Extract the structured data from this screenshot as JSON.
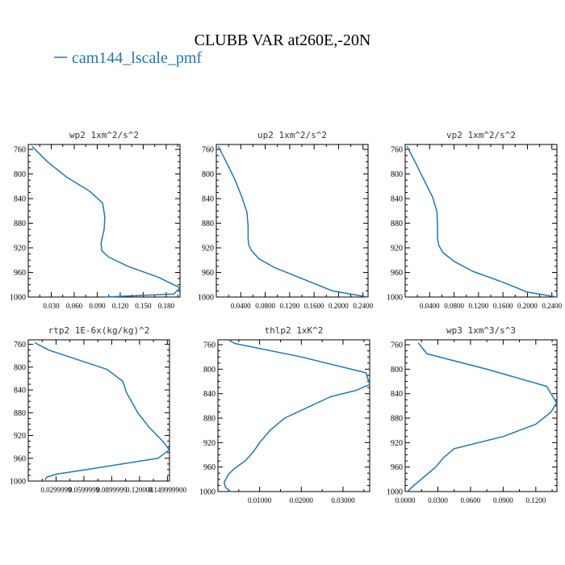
{
  "figure": {
    "title": "CLUBB VAR at260E,-20N",
    "legend_label": "cam144_lscale_pmf",
    "line_color": "#1f77b4"
  },
  "chart_data": [
    {
      "type": "line",
      "title": "wp2  1xm^2/s^2",
      "xlim": [
        0.0,
        0.198
      ],
      "ylim": [
        1000,
        752
      ],
      "x_ticks": [
        0.03,
        0.06,
        0.09,
        0.12,
        0.15,
        0.18
      ],
      "x_tick_labels": [
        "0.030",
        "0.060",
        "0.090",
        "0.120",
        "0.150",
        "0.180"
      ],
      "y_ticks": [
        760,
        800,
        840,
        880,
        920,
        960,
        1000
      ],
      "series": [
        {
          "x": [
            0.005,
            0.025,
            0.05,
            0.08,
            0.097,
            0.1,
            0.099,
            0.095,
            0.096,
            0.105,
            0.13,
            0.17,
            0.198,
            0.19,
            0.1
          ],
          "y": [
            755,
            780,
            805,
            828,
            847,
            870,
            890,
            912,
            925,
            935,
            950,
            968,
            985,
            995,
            1000
          ]
        }
      ]
    },
    {
      "type": "line",
      "title": "up2  1xm^2/s^2",
      "xlim": [
        0.0,
        0.2483
      ],
      "ylim": [
        1000,
        752
      ],
      "x_ticks": [
        0.04,
        0.08,
        0.12,
        0.16,
        0.2,
        0.24
      ],
      "x_tick_labels": [
        "0.0400",
        "0.0800",
        "0.1200",
        "0.1600",
        "0.2000",
        "0.2400"
      ],
      "y_ticks": [
        760,
        800,
        840,
        880,
        920,
        960,
        1000
      ],
      "series": [
        {
          "x": [
            0.003,
            0.015,
            0.03,
            0.042,
            0.05,
            0.052,
            0.052,
            0.053,
            0.058,
            0.07,
            0.095,
            0.14,
            0.19,
            0.248
          ],
          "y": [
            755,
            778,
            808,
            838,
            862,
            885,
            905,
            915,
            925,
            938,
            952,
            970,
            990,
            1000
          ]
        }
      ]
    },
    {
      "type": "line",
      "title": "vp2  1xm^2/s^2",
      "xlim": [
        0.0,
        0.2483
      ],
      "ylim": [
        1000,
        752
      ],
      "x_ticks": [
        0.04,
        0.08,
        0.12,
        0.16,
        0.2,
        0.24
      ],
      "x_tick_labels": [
        "0.0400",
        "0.0800",
        "0.1200",
        "0.1600",
        "0.2000",
        "0.2400"
      ],
      "y_ticks": [
        760,
        800,
        840,
        880,
        920,
        960,
        1000
      ],
      "series": [
        {
          "x": [
            0.003,
            0.015,
            0.03,
            0.045,
            0.052,
            0.053,
            0.053,
            0.055,
            0.062,
            0.08,
            0.11,
            0.16,
            0.2,
            0.248
          ],
          "y": [
            755,
            778,
            808,
            838,
            862,
            885,
            905,
            916,
            928,
            942,
            958,
            976,
            992,
            1000
          ]
        }
      ]
    },
    {
      "type": "line",
      "title": "rtp2  1E-6x(kg/kg)^2",
      "xlim": [
        0.0,
        0.1523
      ],
      "ylim": [
        1000,
        752
      ],
      "x_ticks": [
        0.03,
        0.06,
        0.09,
        0.12,
        0.15
      ],
      "x_tick_labels": [
        "0.0299999",
        "0.0599999",
        "0.0899999",
        "0.120000",
        "0.149999900"
      ],
      "y_ticks": [
        760,
        800,
        840,
        880,
        920,
        960,
        1000
      ],
      "series": [
        {
          "x": [
            0.007,
            0.022,
            0.05,
            0.085,
            0.102,
            0.106,
            0.112,
            0.118,
            0.13,
            0.145,
            0.152,
            0.14,
            0.07,
            0.03,
            0.02,
            0.018
          ],
          "y": [
            757,
            770,
            785,
            804,
            825,
            845,
            862,
            880,
            905,
            930,
            945,
            960,
            978,
            988,
            993,
            998
          ]
        }
      ]
    },
    {
      "type": "line",
      "title": "thlp2  1xK^2",
      "xlim": [
        0.0,
        0.0364
      ],
      "ylim": [
        1000,
        752
      ],
      "x_ticks": [
        0.01,
        0.02,
        0.03
      ],
      "x_tick_labels": [
        "0.01000",
        "0.02000",
        "0.03000"
      ],
      "y_ticks": [
        760,
        800,
        840,
        880,
        920,
        960,
        1000
      ],
      "series": [
        {
          "x": [
            0.0025,
            0.004,
            0.02,
            0.0355,
            0.0364,
            0.033,
            0.027,
            0.016,
            0.0125,
            0.01,
            0.0085,
            0.0065,
            0.004,
            0.0025,
            0.0015,
            0.0018,
            0.003
          ],
          "y": [
            752,
            758,
            780,
            806,
            825,
            835,
            845,
            880,
            900,
            920,
            935,
            950,
            962,
            972,
            985,
            993,
            1000
          ]
        }
      ]
    },
    {
      "type": "line",
      "title": "wp3  1xm^3/s^3",
      "xlim": [
        0.0,
        0.1394
      ],
      "ylim": [
        1000,
        752
      ],
      "x_ticks": [
        0.0,
        0.03,
        0.06,
        0.09,
        0.12
      ],
      "x_tick_labels": [
        "0.0000",
        "0.0300",
        "0.0600",
        "0.0900",
        "0.1200"
      ],
      "y_ticks": [
        760,
        800,
        840,
        880,
        920,
        960,
        1000
      ],
      "series": [
        {
          "x": [
            0.012,
            0.02,
            0.075,
            0.13,
            0.139,
            0.134,
            0.12,
            0.09,
            0.045,
            0.035,
            0.028,
            0.018,
            0.008,
            0.002
          ],
          "y": [
            757,
            775,
            800,
            828,
            855,
            870,
            890,
            910,
            930,
            945,
            960,
            975,
            990,
            1000
          ]
        }
      ]
    }
  ]
}
